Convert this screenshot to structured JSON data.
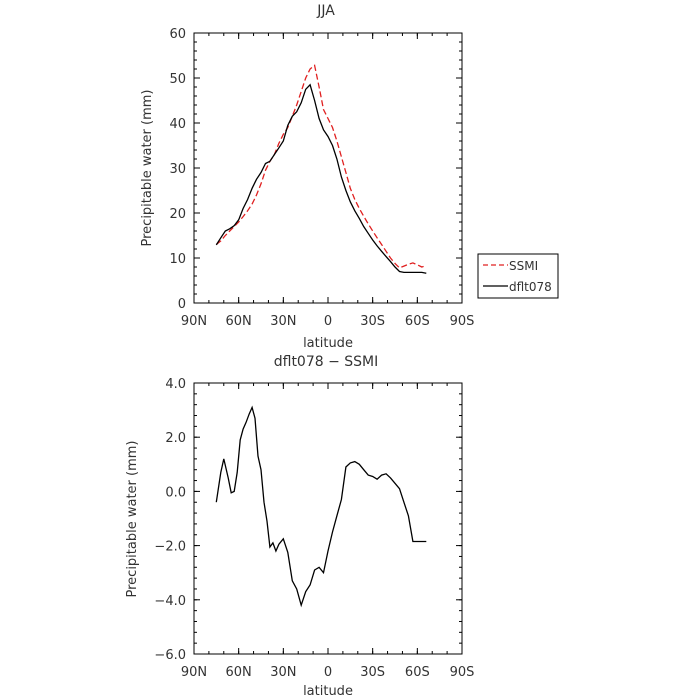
{
  "chart_data": [
    {
      "type": "line",
      "title": "JJA",
      "xlabel": "latitude",
      "ylabel": "Precipitable water  (mm)",
      "xlim": [
        90,
        -90
      ],
      "ylim": [
        0,
        60
      ],
      "x_ticks": [
        90,
        60,
        30,
        0,
        -30,
        -60,
        -90
      ],
      "x_tick_labels": [
        "90N",
        "60N",
        "30N",
        "0",
        "30S",
        "60S",
        "90S"
      ],
      "y_ticks": [
        0,
        10,
        20,
        30,
        40,
        50,
        60
      ],
      "y_tick_labels": [
        "0",
        "10",
        "20",
        "30",
        "40",
        "50",
        "60"
      ],
      "grid": false,
      "legend": {
        "placement": "right",
        "entries": [
          "SSMI",
          "dflt078"
        ]
      },
      "series": [
        {
          "name": "SSMI",
          "color": "#e02020",
          "dash": true,
          "x": [
            75,
            72,
            69,
            66,
            63,
            60,
            57,
            54,
            51,
            48,
            45,
            42,
            39,
            36,
            33,
            30,
            27,
            24,
            21,
            18,
            15,
            12,
            9,
            6,
            3,
            0,
            -3,
            -6,
            -9,
            -12,
            -15,
            -18,
            -21,
            -24,
            -27,
            -30,
            -33,
            -36,
            -39,
            -42,
            -45,
            -48,
            -51,
            -54,
            -57,
            -60,
            -63,
            -66
          ],
          "y": [
            13.0,
            13.8,
            15.0,
            16.0,
            17.0,
            18.0,
            19.2,
            20.5,
            22.0,
            24.0,
            26.5,
            29.5,
            31.5,
            33.0,
            35.5,
            37.5,
            39.0,
            41.5,
            44.0,
            47.0,
            50.0,
            52.0,
            52.8,
            48.0,
            43.0,
            41.0,
            39.0,
            36.0,
            32.5,
            29.0,
            25.5,
            23.0,
            21.0,
            19.3,
            17.6,
            16.0,
            14.5,
            13.0,
            11.5,
            10.0,
            8.8,
            7.8,
            8.2,
            8.6,
            8.9,
            8.5,
            8.0,
            8.3
          ]
        },
        {
          "name": "dflt078",
          "color": "#000000",
          "dash": false,
          "x": [
            75,
            72,
            69,
            66,
            63,
            60,
            57,
            54,
            51,
            48,
            45,
            42,
            39,
            36,
            33,
            30,
            27,
            24,
            21,
            18,
            15,
            12,
            9,
            6,
            3,
            0,
            -3,
            -6,
            -9,
            -12,
            -15,
            -18,
            -21,
            -24,
            -27,
            -30,
            -33,
            -36,
            -39,
            -42,
            -45,
            -48,
            -51,
            -54,
            -57,
            -60,
            -63,
            -66
          ],
          "y": [
            12.9,
            14.5,
            16.0,
            16.5,
            17.2,
            18.5,
            21.0,
            23.0,
            25.5,
            27.5,
            29.0,
            31.0,
            31.5,
            33.0,
            34.5,
            36.0,
            39.5,
            41.5,
            42.5,
            44.5,
            47.5,
            48.5,
            45.0,
            41.0,
            38.5,
            37.0,
            35.0,
            32.0,
            28.0,
            25.0,
            22.5,
            20.5,
            18.8,
            17.0,
            15.5,
            14.0,
            12.7,
            11.5,
            10.3,
            9.2,
            8.0,
            7.0,
            6.8,
            6.8,
            6.8,
            6.8,
            6.8,
            6.6
          ]
        }
      ]
    },
    {
      "type": "line",
      "title": "dflt078 − SSMI",
      "xlabel": "latitude",
      "ylabel": "Precipitable water  (mm)",
      "xlim": [
        90,
        -90
      ],
      "ylim": [
        -6,
        4
      ],
      "x_ticks": [
        90,
        60,
        30,
        0,
        -30,
        -60,
        -90
      ],
      "x_tick_labels": [
        "90N",
        "60N",
        "30N",
        "0",
        "30S",
        "60S",
        "90S"
      ],
      "y_ticks": [
        4,
        2,
        0,
        -2,
        -4,
        -6
      ],
      "y_tick_labels": [
        "4.0",
        "2.0",
        "0.0",
        "−2.0",
        "−4.0",
        "−6.0"
      ],
      "grid": false,
      "series": [
        {
          "color": "#000000",
          "dash": false,
          "x": [
            75,
            72,
            70,
            67,
            65,
            63,
            61,
            59,
            57,
            55,
            53,
            51,
            49,
            47,
            45,
            43,
            41,
            39,
            37,
            35,
            33,
            30,
            27,
            24,
            21,
            18,
            15,
            12,
            9,
            6,
            3,
            0,
            -3,
            -6,
            -9,
            -12,
            -15,
            -18,
            -21,
            -24,
            -27,
            -30,
            -33,
            -36,
            -39,
            -42,
            -45,
            -48,
            -51,
            -54,
            -57,
            -60,
            -63,
            -66
          ],
          "y": [
            -0.4,
            0.7,
            1.2,
            0.5,
            -0.05,
            0.0,
            0.7,
            1.9,
            2.3,
            2.55,
            2.85,
            3.1,
            2.7,
            1.3,
            0.8,
            -0.4,
            -1.1,
            -2.05,
            -1.9,
            -2.2,
            -1.95,
            -1.75,
            -2.25,
            -3.3,
            -3.6,
            -4.2,
            -3.7,
            -3.45,
            -2.9,
            -2.8,
            -3.0,
            -2.2,
            -1.5,
            -0.9,
            -0.3,
            0.9,
            1.05,
            1.1,
            1.0,
            0.8,
            0.6,
            0.55,
            0.45,
            0.6,
            0.65,
            0.5,
            0.3,
            0.1,
            -0.4,
            -0.9,
            -1.85,
            -1.85,
            -1.85,
            -1.85
          ]
        }
      ]
    }
  ]
}
